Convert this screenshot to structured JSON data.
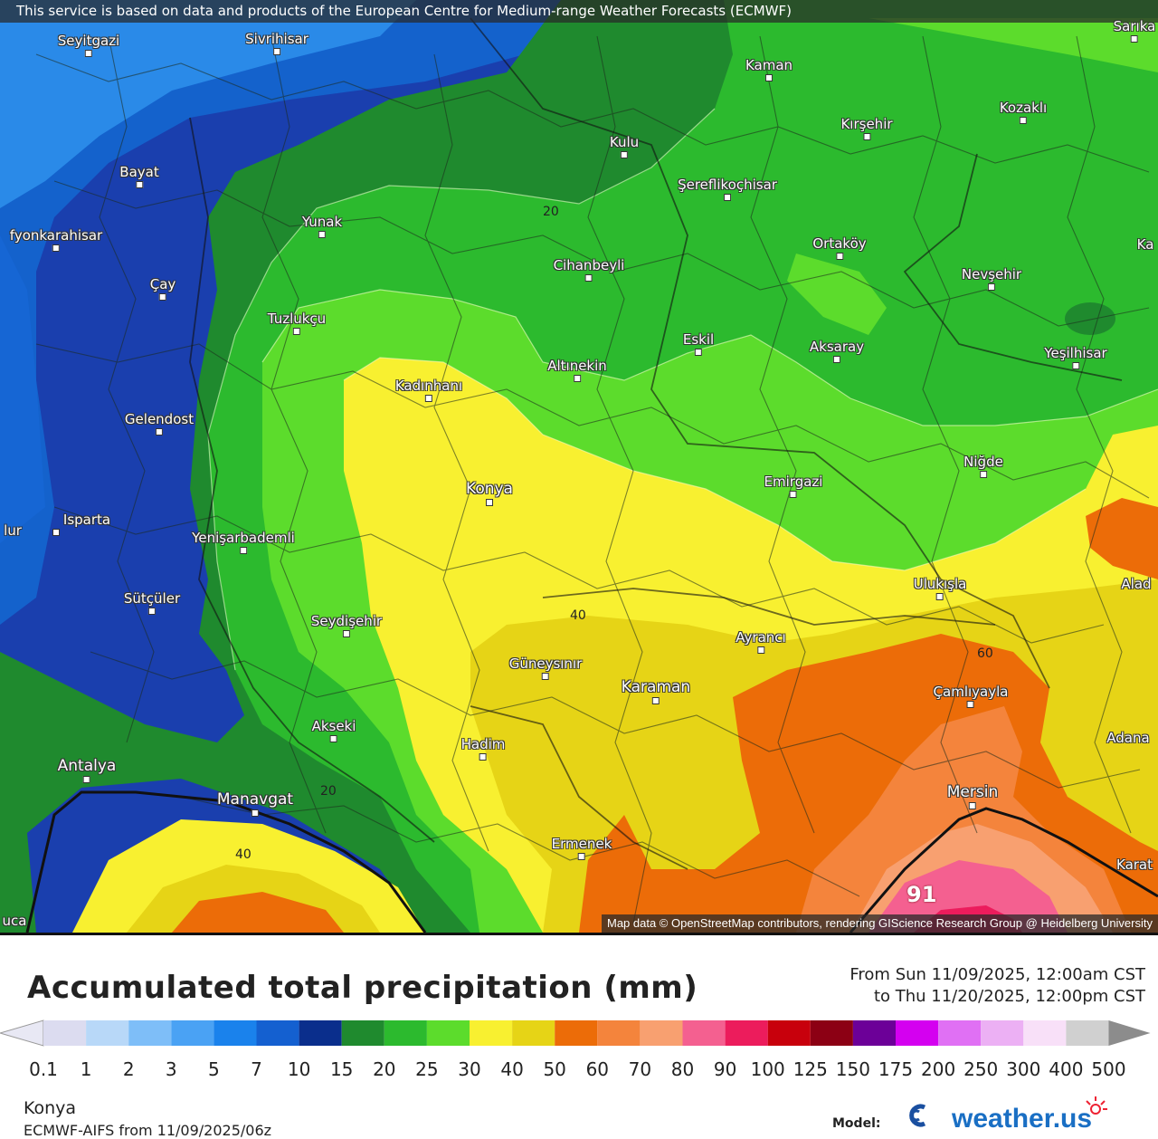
{
  "attribution_top": "This service is based on data and products of the European Centre for Medium-range Weather Forecasts (ECMWF)",
  "attribution_bottom": "Map data © OpenStreetMap contributors, rendering GIScience Research Group @ Heidelberg University",
  "cities": [
    {
      "name": "Seyitgazi"
    },
    {
      "name": "Sivrihisar"
    },
    {
      "name": "Kaman"
    },
    {
      "name": "Sarıka"
    },
    {
      "name": "Kozaklı"
    },
    {
      "name": "Kırşehir"
    },
    {
      "name": "Kulu"
    },
    {
      "name": "Bayat"
    },
    {
      "name": "Şereflikoçhisar"
    },
    {
      "name": "Yunak"
    },
    {
      "name": "fyonkarahisar"
    },
    {
      "name": "Ortaköy"
    },
    {
      "name": "Ka"
    },
    {
      "name": "Cihanbeyli"
    },
    {
      "name": "Nevşehir"
    },
    {
      "name": "Çay"
    },
    {
      "name": "Tuzlukçu"
    },
    {
      "name": "Eskil"
    },
    {
      "name": "Aksaray"
    },
    {
      "name": "Yeşilhisar"
    },
    {
      "name": "Altınekin"
    },
    {
      "name": "Kadınhanı"
    },
    {
      "name": "Gelendost"
    },
    {
      "name": "Niğde"
    },
    {
      "name": "Emirgazi"
    },
    {
      "name": "Konya"
    },
    {
      "name": "lur"
    },
    {
      "name": "Isparta"
    },
    {
      "name": "Yenişarbademli"
    },
    {
      "name": "Ulukışla"
    },
    {
      "name": "Alad"
    },
    {
      "name": "Sütçüler"
    },
    {
      "name": "Seydişehir"
    },
    {
      "name": "Ayrancı"
    },
    {
      "name": "Güneysınır"
    },
    {
      "name": "Karaman"
    },
    {
      "name": "Çamlıyayla"
    },
    {
      "name": "Akseki"
    },
    {
      "name": "Hadim"
    },
    {
      "name": "Adana"
    },
    {
      "name": "Antalya"
    },
    {
      "name": "Manavgat"
    },
    {
      "name": "Mersin"
    },
    {
      "name": "Ermenek"
    },
    {
      "name": "Karat"
    },
    {
      "name": "uca"
    }
  ],
  "contour_labels": [
    "20",
    "40",
    "60",
    "20",
    "40"
  ],
  "max_value": "91",
  "legend": {
    "title": "Accumulated total precipitation (mm)",
    "from": "From Sun 11/09/2025, 12:00am CST",
    "to": "to Thu 11/20/2025, 12:00pm CST",
    "ticks": [
      "0.1",
      "1",
      "2",
      "3",
      "5",
      "7",
      "10",
      "15",
      "20",
      "25",
      "30",
      "40",
      "50",
      "60",
      "70",
      "80",
      "90",
      "100",
      "125",
      "150",
      "175",
      "200",
      "250",
      "300",
      "400",
      "500"
    ],
    "colors": [
      "#dcdcf0",
      "#b8d8f8",
      "#7ebef8",
      "#4aa2f4",
      "#1a82ec",
      "#1460d0",
      "#0a2e8c",
      "#1f8a2e",
      "#2cba2e",
      "#5cdc2c",
      "#f8f030",
      "#e6d416",
      "#ec6c08",
      "#f4843c",
      "#f8a070",
      "#f46090",
      "#ec1c5c",
      "#c8000c",
      "#8c0014",
      "#6c0098",
      "#d400f0",
      "#e070f4",
      "#ecb0f4",
      "#f8e0f8",
      "#d0d0d0"
    ]
  },
  "location": "Konya",
  "run_info": "ECMWF-AIFS from 11/09/2025/06z",
  "model_label": "Model:",
  "logo_text": "weather.us"
}
